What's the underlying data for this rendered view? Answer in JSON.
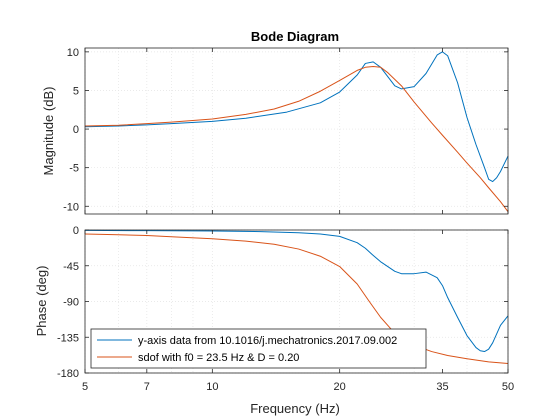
{
  "chart_data": {
    "type": "line",
    "title": "Bode Diagram",
    "xlabel": "Frequency  (Hz)",
    "x_scale": "log",
    "xlim": [
      5,
      50
    ],
    "x_ticks": [
      5,
      7,
      10,
      20,
      35,
      50
    ],
    "x_tick_labels": [
      "5",
      "7",
      "10",
      "20",
      "35",
      "50"
    ],
    "grid": true,
    "colors": {
      "series_0": "#0072BD",
      "series_1": "#D95319"
    },
    "panels": [
      {
        "id": "magnitude",
        "ylabel": "Magnitude (dB)",
        "ylim": [
          -11,
          10.5
        ],
        "y_ticks": [
          10,
          5,
          0,
          -5,
          -10
        ],
        "y_tick_labels": [
          "10",
          "5",
          "0",
          "-5",
          "-10"
        ],
        "series": [
          {
            "x": [
              5,
              6,
              7,
              8,
              10,
              12,
              15,
              18,
              20,
              22,
              23,
              24,
              25,
              27,
              28,
              30,
              32,
              34,
              35,
              36,
              38,
              40,
              42,
              44,
              45,
              46,
              47,
              48,
              50
            ],
            "y": [
              0.3,
              0.4,
              0.55,
              0.7,
              1.0,
              1.4,
              2.2,
              3.4,
              4.8,
              7.0,
              8.5,
              8.7,
              8.0,
              5.6,
              5.2,
              5.5,
              7.2,
              9.6,
              10.0,
              9.5,
              6.0,
              1.5,
              -2.0,
              -5.0,
              -6.5,
              -6.8,
              -6.3,
              -5.5,
              -3.5
            ]
          },
          {
            "x": [
              5,
              6,
              7,
              8,
              10,
              12,
              14,
              16,
              18,
              20,
              22,
              23,
              24,
              25,
              26,
              28,
              30,
              33,
              35,
              38,
              40,
              43,
              45,
              48,
              50
            ],
            "y": [
              0.4,
              0.5,
              0.7,
              0.9,
              1.3,
              1.9,
              2.6,
              3.6,
              4.9,
              6.3,
              7.6,
              8.0,
              8.1,
              8.0,
              7.3,
              5.6,
              3.5,
              0.8,
              -0.8,
              -3.0,
              -4.4,
              -6.3,
              -7.6,
              -9.4,
              -10.7
            ]
          }
        ]
      },
      {
        "id": "phase",
        "ylabel": "Phase (deg)",
        "ylim": [
          -180,
          0
        ],
        "y_ticks": [
          0,
          -45,
          -90,
          -135,
          -180
        ],
        "y_tick_labels": [
          "0",
          "-45",
          "-90",
          "-135",
          "-180"
        ],
        "series": [
          {
            "name": "y-axis data from 10.1016/j.mechatronics.2017.09.002",
            "x": [
              5,
              7,
              10,
              13,
              16,
              18,
              20,
              22,
              23,
              24,
              25,
              27,
              28,
              30,
              32,
              34,
              35,
              36,
              38,
              40,
              42,
              43,
              44,
              45,
              46,
              48,
              50
            ],
            "y": [
              -0.5,
              -0.8,
              -1.3,
              -2,
              -3.5,
              -5,
              -8,
              -16,
              -23,
              -32,
              -40,
              -52,
              -55,
              -55,
              -53,
              -60,
              -70,
              -85,
              -110,
              -133,
              -148,
              -152,
              -153,
              -150,
              -142,
              -120,
              -108
            ]
          },
          {
            "name": "sdof with f0 = 23.5 Hz & D = 0.20",
            "x": [
              5,
              6,
              7,
              8,
              10,
              12,
              14,
              16,
              18,
              20,
              22,
              23.5,
              25,
              27,
              30,
              33,
              36,
              40,
              45,
              50
            ],
            "y": [
              -5,
              -6,
              -7,
              -8.5,
              -11,
              -14,
              -18,
              -24,
              -33,
              -46,
              -68,
              -90,
              -110,
              -130,
              -145,
              -153,
              -158,
              -162,
              -166,
              -168
            ]
          }
        ]
      }
    ],
    "legend": {
      "placement": "bottom-left",
      "panel": "phase",
      "entries": [
        "y-axis data from 10.1016/j.mechatronics.2017.09.002",
        "sdof with f0 = 23.5 Hz & D = 0.20"
      ]
    }
  }
}
